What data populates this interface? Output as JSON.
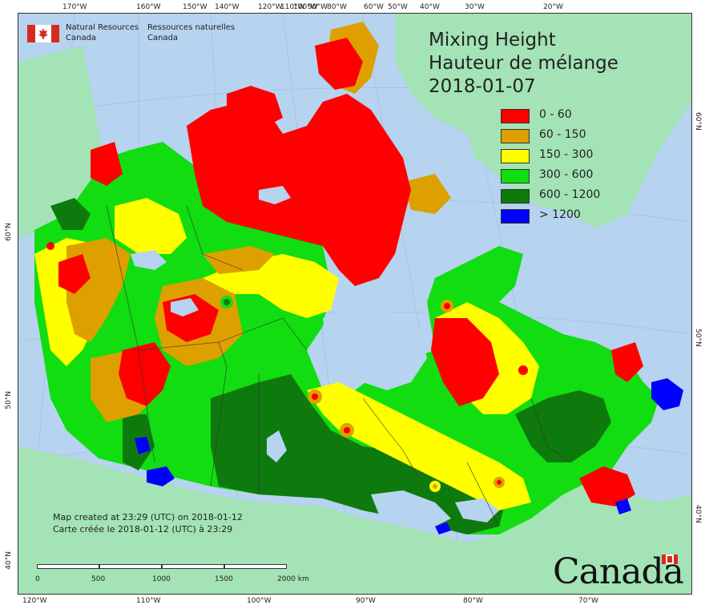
{
  "title": {
    "line1": "Mixing Height",
    "line2": "Hauteur de mélange",
    "date": "2018-01-07"
  },
  "agency": {
    "name_en_1": "Natural Resources",
    "name_en_2": "Canada",
    "name_fr_1": "Ressources naturelles",
    "name_fr_2": "Canada"
  },
  "legend": [
    {
      "label": "0 - 60",
      "color": "#ff0000"
    },
    {
      "label": "60 - 150",
      "color": "#dda000"
    },
    {
      "label": "150 - 300",
      "color": "#ffff00"
    },
    {
      "label": "300 - 600",
      "color": "#11dd11"
    },
    {
      "label": "600 - 1200",
      "color": "#0e7a0e"
    },
    {
      "label": "> 1200",
      "color": "#0000ff"
    }
  ],
  "created": {
    "en": "Map created at 23:29 (UTC) on 2018-01-12",
    "fr": "Carte créée le 2018-01-12 (UTC) à 23:29"
  },
  "scale": {
    "labels": [
      "0",
      "500",
      "1000",
      "1500",
      "2000  km"
    ]
  },
  "ticks": {
    "top": [
      "170°W",
      "160°W",
      "150°W",
      "140°W",
      "120°W",
      "110°W",
      "100°W",
      "90°W",
      "80°W",
      "60°W",
      "50°W",
      "40°W",
      "30°W",
      "20°W"
    ],
    "bottom": [
      "120°W",
      "110°W",
      "100°W",
      "90°W",
      "80°W",
      "70°W"
    ],
    "left": [
      "60°N",
      "50°N",
      "40°N"
    ],
    "right": [
      "60°N",
      "50°N",
      "40°N"
    ]
  },
  "wordmark": "Canada",
  "colors": {
    "ocean": "#b6d3ef",
    "foreign_land": "#a3e3b5",
    "water_lakes": "#b6d3ef"
  }
}
